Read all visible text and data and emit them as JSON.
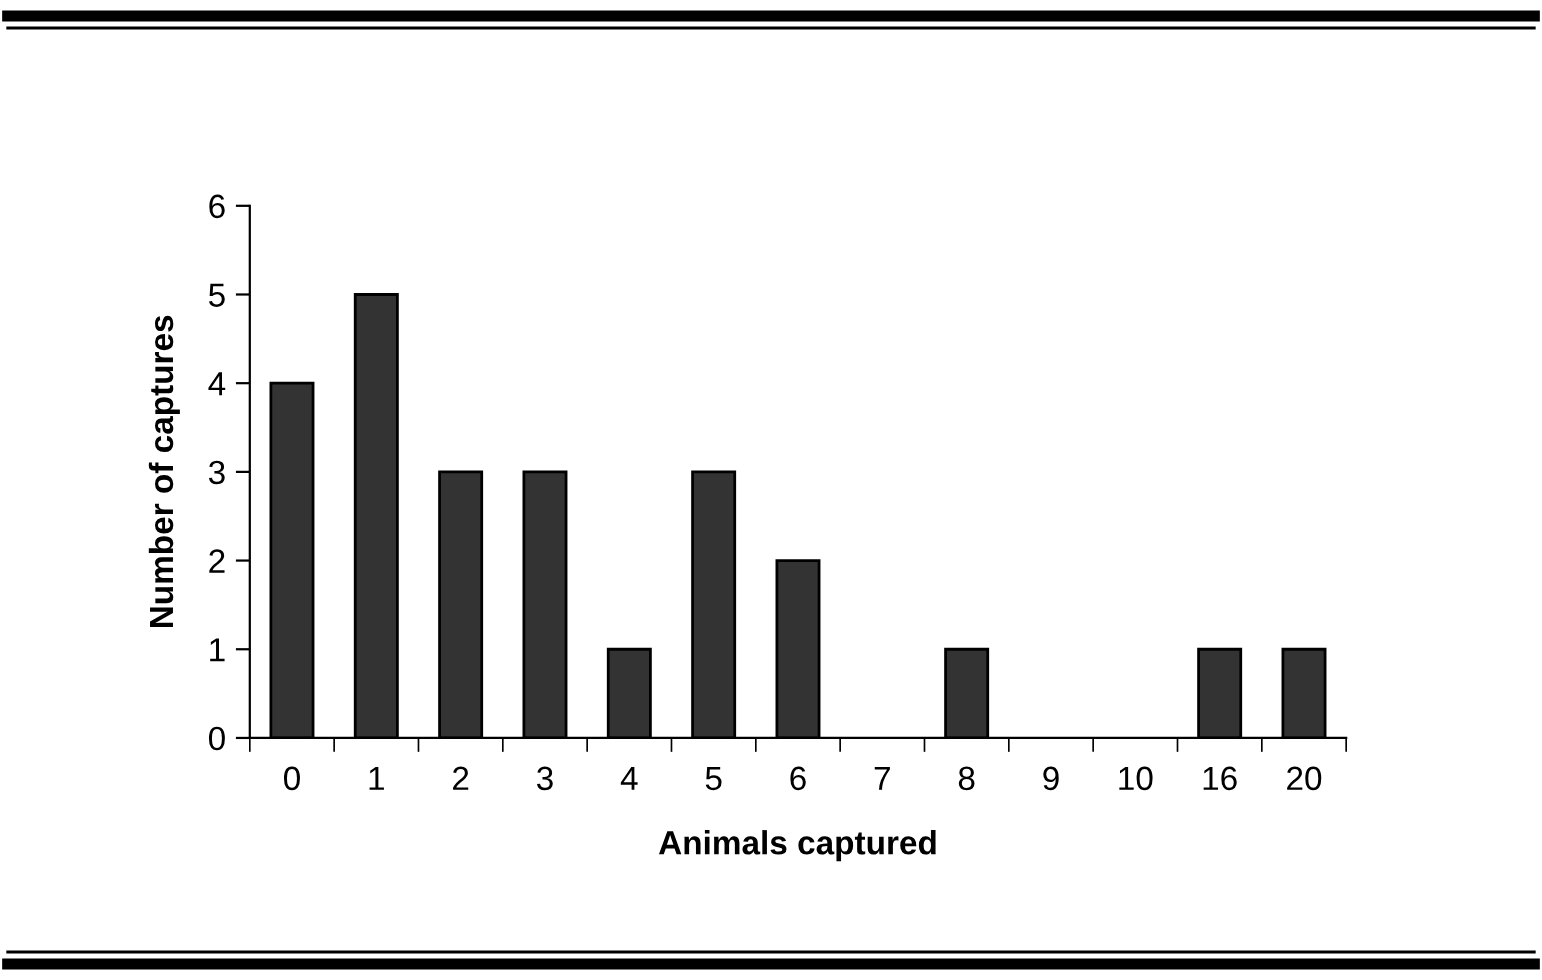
{
  "chart_data": {
    "type": "bar",
    "xlabel": "Animals captured",
    "ylabel": "Number of captures",
    "categories": [
      "0",
      "1",
      "2",
      "3",
      "4",
      "5",
      "6",
      "7",
      "8",
      "9",
      "10",
      "16",
      "20"
    ],
    "values": [
      4,
      5,
      3,
      3,
      1,
      3,
      2,
      0,
      1,
      0,
      0,
      1,
      1
    ],
    "color": "#333333",
    "ylim": [
      0,
      6
    ],
    "yticks": [
      0,
      1,
      2,
      3,
      4,
      5,
      6
    ],
    "grid": false,
    "legend": false
  }
}
